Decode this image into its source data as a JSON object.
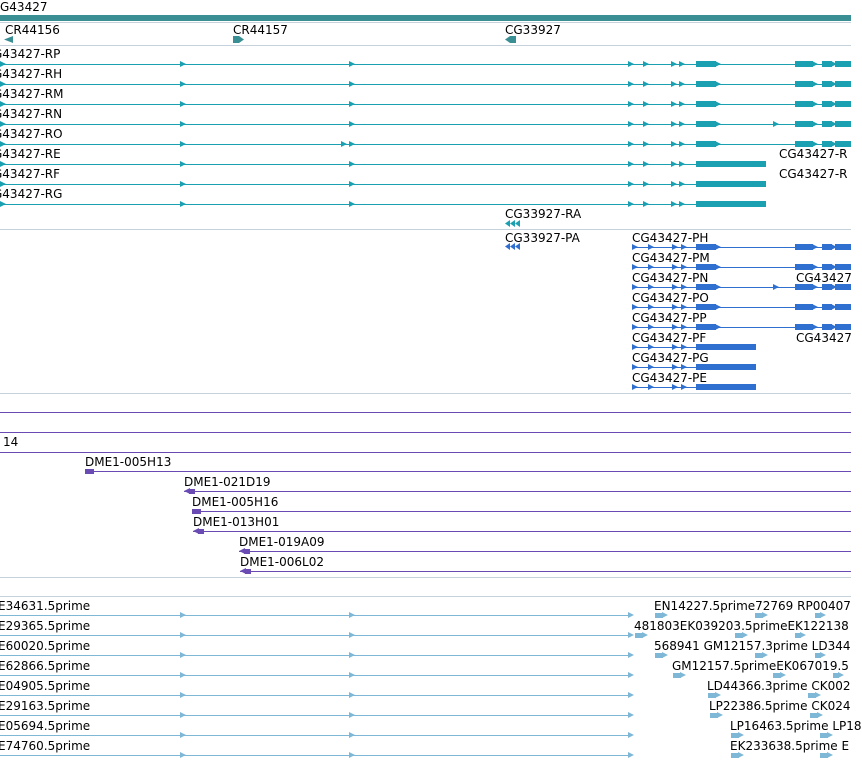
{
  "colors": {
    "teal": "#1aa0b0",
    "teal_dark": "#3a8f94",
    "blue": "#2f6fd0",
    "purple": "#6a4bb3",
    "lightblue": "#7fb7d6",
    "separator": "#c5d2dc"
  },
  "icons": {
    "strand_right": "triangle-right-icon",
    "strand_left": "triangle-left-icon"
  },
  "track_gene": {
    "label": "G43427"
  },
  "track_ncrna": {
    "items": [
      "CR44156",
      "CR44157",
      "CG33927"
    ]
  },
  "track_transcripts": {
    "rows": [
      "G43427-RP",
      "G43427-RH",
      "G43427-RM",
      "G43427-RN",
      "G43427-RO",
      "G43427-RE",
      "G43427-RF",
      "G43427-RG"
    ],
    "right_labels": [
      "CG43427-R",
      "CG43427-R"
    ],
    "extra_label": "CG33927-RA"
  },
  "track_proteins": {
    "left_label": "CG33927-PA",
    "rows": [
      "CG43427-PH",
      "CG43427-PM",
      "CG43427-PN",
      "CG43427-PO",
      "CG43427-PP",
      "CG43427-PF",
      "CG43427-PG",
      "CG43427-PE"
    ],
    "right_labels": [
      "CG43427",
      "CG43427"
    ]
  },
  "track_clones": {
    "label": "14",
    "items": [
      "DME1-005H13",
      "DME1-021D19",
      "DME1-005H16",
      "DME1-013H01",
      "DME1-019A09",
      "DME1-006L02"
    ]
  },
  "track_est": {
    "left_labels": [
      "E34631.5prime",
      "E29365.5prime",
      "E60020.5prime",
      "E62866.5prime",
      "E04905.5prime",
      "E29163.5prime",
      "E05694.5prime",
      "E74760.5prime"
    ],
    "right_labels": [
      "EN14227.5prime72769 RP00407",
      "481803EK039203.5primeEK122138",
      "568941 GM12157.3prime LD344",
      "GM12157.5primeEK067019.5",
      "LD44366.3prime  CK002",
      "LP22386.5prime CK024",
      "LP16463.5prime LP18",
      "EK233638.5prime E"
    ]
  }
}
